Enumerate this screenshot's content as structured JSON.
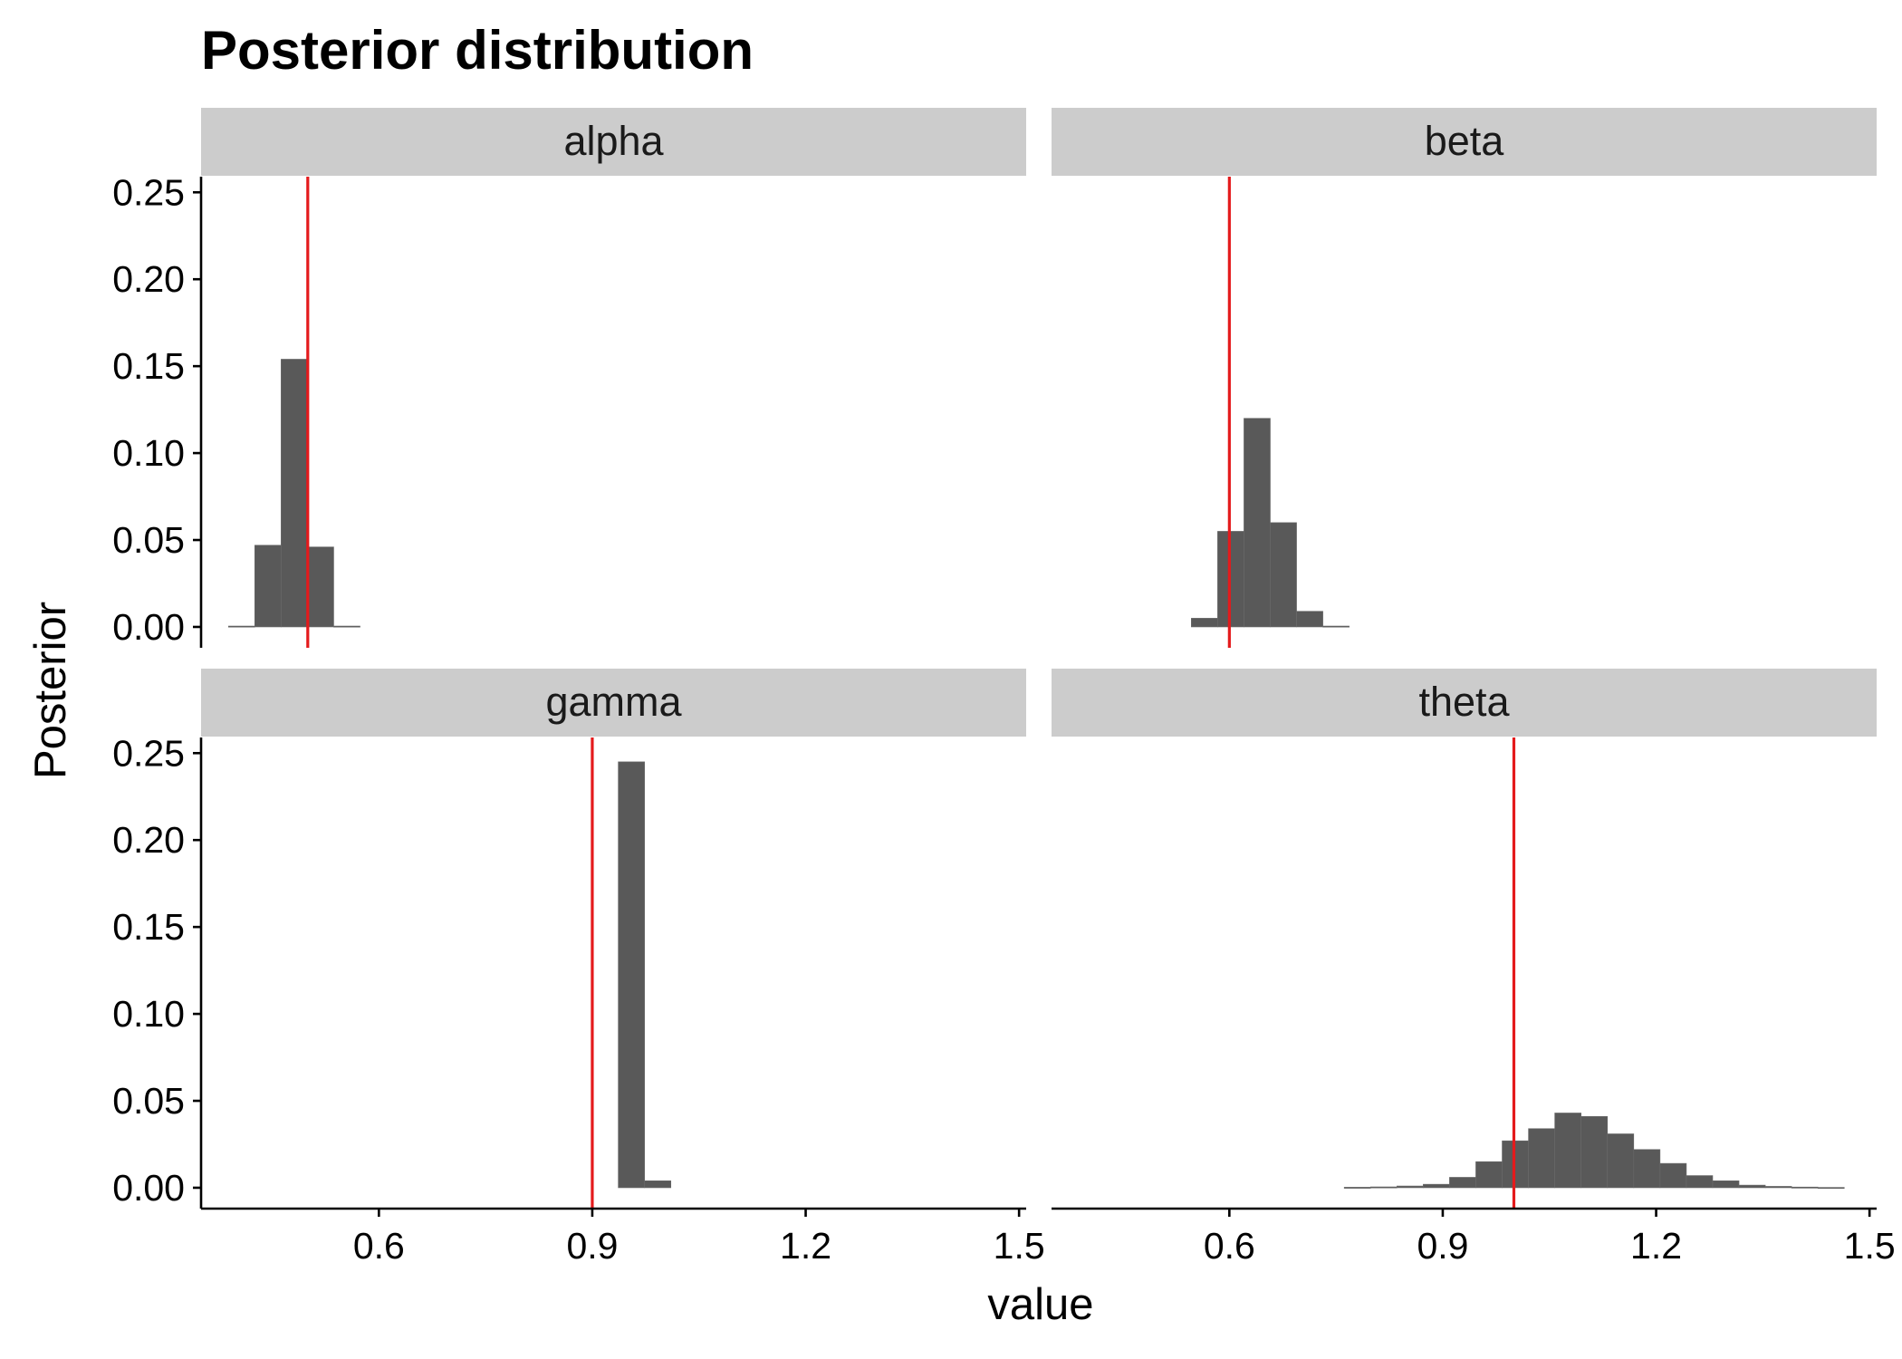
{
  "chart_data": {
    "type": "bar",
    "title": "Posterior distribution",
    "xlabel": "value",
    "ylabel": "Posterior",
    "xlim": [
      0.35,
      1.51
    ],
    "ylim": [
      -0.012,
      0.259
    ],
    "x_ticks": [
      "0.6",
      "0.9",
      "1.2",
      "1.5"
    ],
    "y_ticks": [
      "0.00",
      "0.05",
      "0.10",
      "0.15",
      "0.20",
      "0.25"
    ],
    "bin_width": 0.037,
    "grid": false,
    "colors": {
      "bars": "#595959",
      "reference_line": "#e41a1c",
      "strip": "#cccccc"
    },
    "panels": [
      {
        "label": "alpha",
        "reference": 0.5,
        "bins": [
          {
            "x": 0.407,
            "y": 0.0005
          },
          {
            "x": 0.444,
            "y": 0.047
          },
          {
            "x": 0.481,
            "y": 0.154
          },
          {
            "x": 0.518,
            "y": 0.046
          },
          {
            "x": 0.555,
            "y": 0.0005
          }
        ]
      },
      {
        "label": "beta",
        "reference": 0.6,
        "bins": [
          {
            "x": 0.565,
            "y": 0.005
          },
          {
            "x": 0.602,
            "y": 0.055
          },
          {
            "x": 0.639,
            "y": 0.12
          },
          {
            "x": 0.676,
            "y": 0.06
          },
          {
            "x": 0.713,
            "y": 0.009
          },
          {
            "x": 0.75,
            "y": 0.0005
          }
        ]
      },
      {
        "label": "gamma",
        "reference": 0.9,
        "bins": [
          {
            "x": 0.955,
            "y": 0.245
          },
          {
            "x": 0.992,
            "y": 0.004
          }
        ]
      },
      {
        "label": "theta",
        "reference": 1.0,
        "bins": [
          {
            "x": 0.78,
            "y": 0.0003
          },
          {
            "x": 0.817,
            "y": 0.0005
          },
          {
            "x": 0.854,
            "y": 0.001
          },
          {
            "x": 0.891,
            "y": 0.002
          },
          {
            "x": 0.928,
            "y": 0.006
          },
          {
            "x": 0.965,
            "y": 0.015
          },
          {
            "x": 1.002,
            "y": 0.027
          },
          {
            "x": 1.039,
            "y": 0.034
          },
          {
            "x": 1.076,
            "y": 0.043
          },
          {
            "x": 1.113,
            "y": 0.041
          },
          {
            "x": 1.15,
            "y": 0.031
          },
          {
            "x": 1.187,
            "y": 0.022
          },
          {
            "x": 1.224,
            "y": 0.014
          },
          {
            "x": 1.261,
            "y": 0.007
          },
          {
            "x": 1.298,
            "y": 0.004
          },
          {
            "x": 1.335,
            "y": 0.0015
          },
          {
            "x": 1.372,
            "y": 0.0008
          },
          {
            "x": 1.409,
            "y": 0.0004
          },
          {
            "x": 1.446,
            "y": 0.0002
          }
        ]
      }
    ]
  }
}
